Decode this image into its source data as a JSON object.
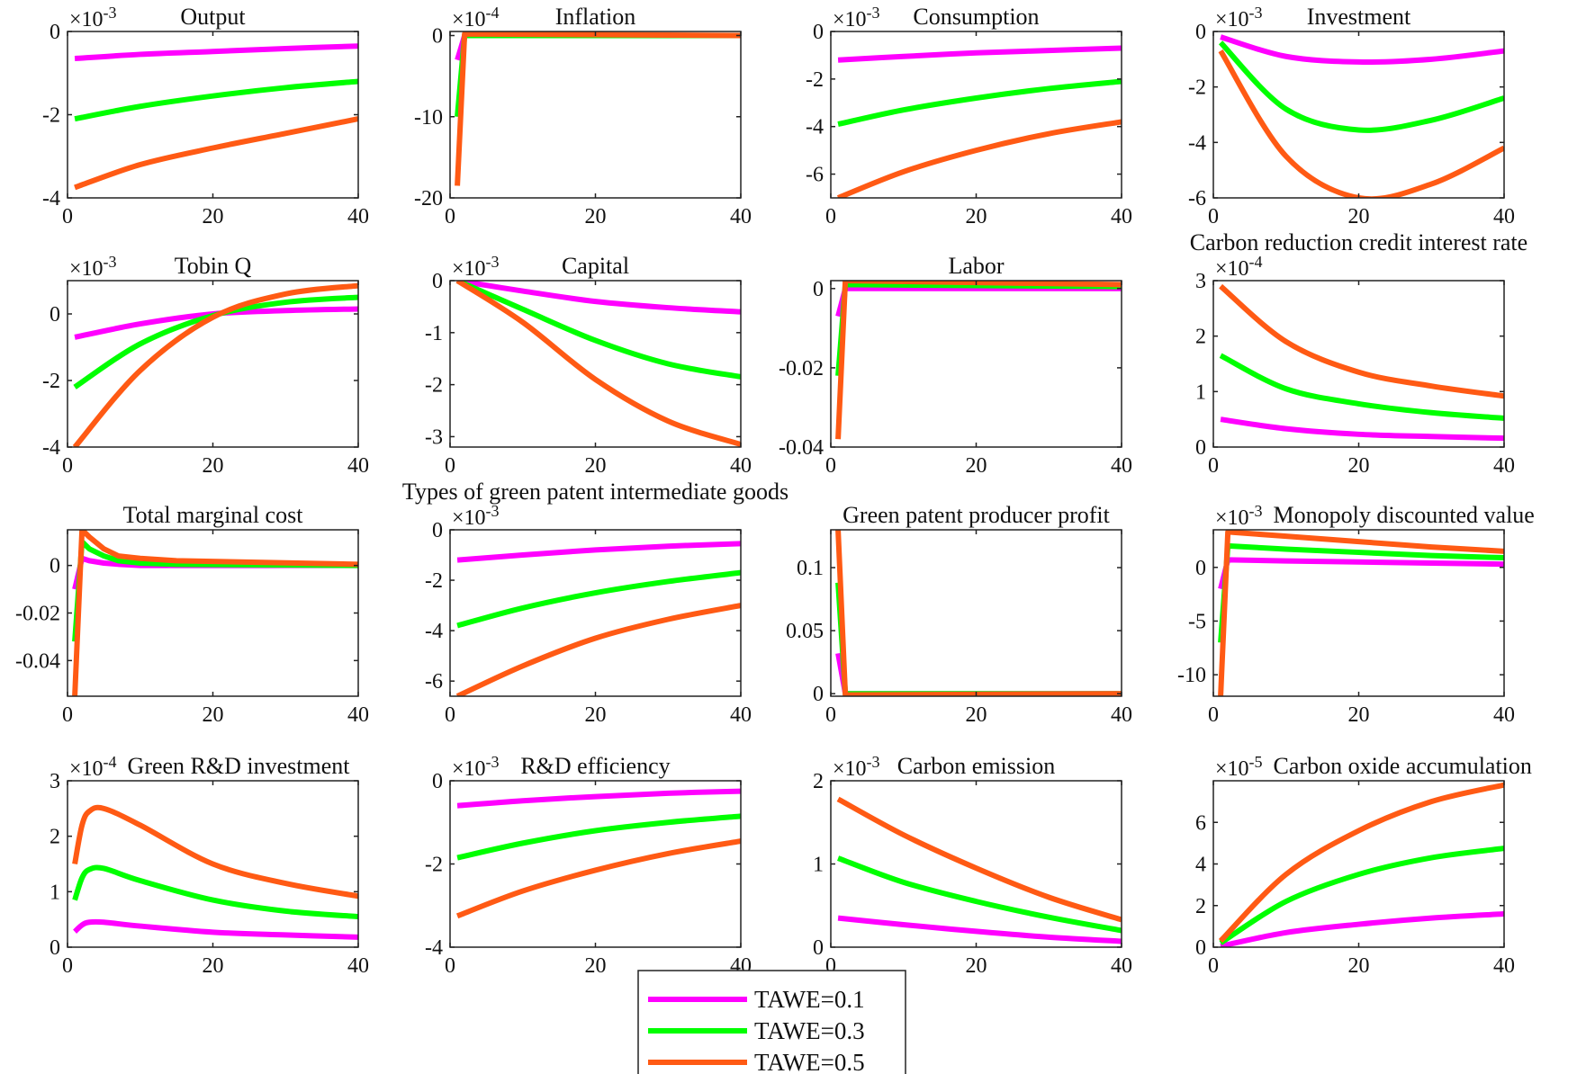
{
  "chart_data": {
    "type": "line",
    "grid": false,
    "layout": "4x4 subplots",
    "legend": {
      "placement": "bottom-center",
      "entries": [
        "TAWE=0.1",
        "TAWE=0.3",
        "TAWE=0.5"
      ]
    },
    "series_colors": [
      "#ff00ff",
      "#00ff00",
      "#ff5a14"
    ],
    "xlim": [
      0,
      40
    ],
    "xticks": [
      0,
      20,
      40
    ],
    "panels": [
      {
        "title": "Output",
        "exponent": "-3",
        "ylim": [
          -4,
          0
        ],
        "yticks": [
          0,
          -2,
          -4
        ],
        "smooth": true,
        "x": [
          1,
          10,
          20,
          30,
          40
        ],
        "series": [
          [
            -0.65,
            -0.55,
            -0.48,
            -0.41,
            -0.35
          ],
          [
            -2.1,
            -1.8,
            -1.55,
            -1.35,
            -1.2
          ],
          [
            -3.75,
            -3.2,
            -2.8,
            -2.45,
            -2.1
          ]
        ]
      },
      {
        "title": "Inflation",
        "exponent": "-4",
        "ylim": [
          -20,
          0.5
        ],
        "yticks": [
          0,
          -10,
          -20
        ],
        "smooth": false,
        "x": [
          1,
          2,
          40
        ],
        "series": [
          [
            -3,
            0,
            0
          ],
          [
            -10,
            0,
            0
          ],
          [
            -18.5,
            0.2,
            0
          ]
        ]
      },
      {
        "title": "Consumption",
        "exponent": "-3",
        "ylim": [
          -7,
          0
        ],
        "yticks": [
          0,
          -2,
          -4,
          -6
        ],
        "smooth": true,
        "x": [
          1,
          10,
          20,
          30,
          40
        ],
        "series": [
          [
            -1.2,
            -1.05,
            -0.9,
            -0.8,
            -0.7
          ],
          [
            -3.9,
            -3.3,
            -2.8,
            -2.4,
            -2.1
          ],
          [
            -7,
            -5.9,
            -5.0,
            -4.3,
            -3.8
          ]
        ]
      },
      {
        "title": "Investment",
        "exponent": "-3",
        "ylim": [
          -6,
          0
        ],
        "yticks": [
          0,
          -2,
          -4,
          -6
        ],
        "smooth": true,
        "x": [
          1,
          10,
          20,
          30,
          40
        ],
        "series": [
          [
            -0.2,
            -0.9,
            -1.1,
            -1.0,
            -0.7
          ],
          [
            -0.4,
            -2.8,
            -3.55,
            -3.2,
            -2.4
          ],
          [
            -0.7,
            -4.5,
            -6.0,
            -5.5,
            -4.2
          ]
        ]
      },
      {
        "title": "Tobin Q",
        "exponent": "-3",
        "ylim": [
          -4,
          1
        ],
        "yticks": [
          0,
          -2,
          -4
        ],
        "smooth": true,
        "x": [
          1,
          10,
          20,
          30,
          40
        ],
        "series": [
          [
            -0.7,
            -0.3,
            0,
            0.1,
            0.15
          ],
          [
            -2.2,
            -0.9,
            -0.05,
            0.35,
            0.5
          ],
          [
            -4.0,
            -1.7,
            -0.1,
            0.6,
            0.85
          ]
        ]
      },
      {
        "title": "Capital",
        "exponent": "-3",
        "ylim": [
          -3.2,
          0
        ],
        "yticks": [
          0,
          -1,
          -2,
          -3
        ],
        "smooth": true,
        "x": [
          1,
          10,
          20,
          30,
          40
        ],
        "series": [
          [
            0,
            -0.2,
            -0.4,
            -0.52,
            -0.6
          ],
          [
            0,
            -0.55,
            -1.15,
            -1.6,
            -1.85
          ],
          [
            0,
            -0.8,
            -1.9,
            -2.7,
            -3.15
          ]
        ]
      },
      {
        "title": "Labor",
        "exponent": "",
        "ylim": [
          -0.04,
          0.002
        ],
        "yticks": [
          0,
          -0.02,
          -0.04
        ],
        "smooth": false,
        "x": [
          1,
          2,
          40
        ],
        "series": [
          [
            -0.007,
            0,
            0
          ],
          [
            -0.022,
            0.001,
            0.0005
          ],
          [
            -0.038,
            0.002,
            0.001
          ]
        ]
      },
      {
        "title": "Carbon reduction credit interest rate",
        "exponent": "-4",
        "ylim": [
          0,
          3
        ],
        "yticks": [
          0,
          1,
          2,
          3
        ],
        "smooth": true,
        "x": [
          1,
          10,
          20,
          30,
          40
        ],
        "series": [
          [
            0.5,
            0.33,
            0.23,
            0.19,
            0.16
          ],
          [
            1.65,
            1.05,
            0.78,
            0.62,
            0.52
          ],
          [
            2.9,
            1.9,
            1.35,
            1.1,
            0.92
          ]
        ]
      },
      {
        "title": "Total marginal cost",
        "exponent": "",
        "ylim": [
          -0.055,
          0.015
        ],
        "yticks": [
          0,
          -0.02,
          -0.04
        ],
        "smooth": false,
        "x": [
          1,
          2,
          3,
          5,
          7,
          10,
          15,
          40
        ],
        "series": [
          [
            -0.01,
            0.003,
            0.002,
            0.001,
            0.0005,
            0,
            0,
            0
          ],
          [
            -0.032,
            0.01,
            0.007,
            0.004,
            0.002,
            0.001,
            0.0005,
            0
          ],
          [
            -0.055,
            0.015,
            0.012,
            0.007,
            0.004,
            0.003,
            0.002,
            0.0005
          ]
        ]
      },
      {
        "title": "Types of green patent intermediate goods",
        "exponent": "-3",
        "ylim": [
          -6.6,
          0
        ],
        "yticks": [
          0,
          -2,
          -4,
          -6
        ],
        "smooth": true,
        "x": [
          1,
          10,
          20,
          30,
          40
        ],
        "series": [
          [
            -1.2,
            -1.0,
            -0.8,
            -0.65,
            -0.55
          ],
          [
            -3.8,
            -3.1,
            -2.5,
            -2.05,
            -1.7
          ],
          [
            -6.6,
            -5.4,
            -4.3,
            -3.55,
            -3.0
          ]
        ]
      },
      {
        "title": "Green patent producer profit",
        "exponent": "",
        "ylim": [
          -0.002,
          0.13
        ],
        "yticks": [
          0,
          0.05,
          0.1
        ],
        "smooth": false,
        "x": [
          1,
          2,
          40
        ],
        "series": [
          [
            0.032,
            0,
            0
          ],
          [
            0.088,
            0,
            0
          ],
          [
            0.13,
            -0.001,
            0
          ]
        ]
      },
      {
        "title": "Monopoly discounted value",
        "exponent": "-3",
        "ylim": [
          -12,
          3.5
        ],
        "yticks": [
          0,
          -5,
          -10
        ],
        "smooth": false,
        "x": [
          1,
          2,
          10,
          20,
          30,
          40
        ],
        "series": [
          [
            -2,
            0.7,
            0.6,
            0.5,
            0.4,
            0.3
          ],
          [
            -7,
            2,
            1.7,
            1.4,
            1.1,
            0.9
          ],
          [
            -12,
            3.3,
            2.9,
            2.4,
            1.9,
            1.5
          ]
        ]
      },
      {
        "title": "Green R&D investment",
        "exponent": "-4",
        "ylim": [
          0,
          3
        ],
        "yticks": [
          0,
          1,
          2,
          3
        ],
        "smooth": true,
        "x": [
          1,
          2,
          3,
          5,
          10,
          20,
          30,
          40
        ],
        "series": [
          [
            0.28,
            0.4,
            0.45,
            0.45,
            0.38,
            0.27,
            0.22,
            0.18
          ],
          [
            0.85,
            1.25,
            1.4,
            1.42,
            1.2,
            0.85,
            0.65,
            0.55
          ],
          [
            1.5,
            2.2,
            2.45,
            2.5,
            2.2,
            1.5,
            1.15,
            0.92
          ]
        ]
      },
      {
        "title": "R&D efficiency",
        "exponent": "-3",
        "ylim": [
          -4,
          0
        ],
        "yticks": [
          0,
          -2,
          -4
        ],
        "smooth": true,
        "x": [
          1,
          10,
          20,
          30,
          40
        ],
        "series": [
          [
            -0.6,
            -0.48,
            -0.38,
            -0.3,
            -0.25
          ],
          [
            -1.85,
            -1.5,
            -1.2,
            -1.0,
            -0.85
          ],
          [
            -3.25,
            -2.65,
            -2.15,
            -1.75,
            -1.45
          ]
        ]
      },
      {
        "title": "Carbon emission",
        "exponent": "-3",
        "ylim": [
          0,
          2
        ],
        "yticks": [
          0,
          1,
          2
        ],
        "smooth": true,
        "x": [
          1,
          10,
          20,
          30,
          40
        ],
        "series": [
          [
            0.35,
            0.27,
            0.19,
            0.12,
            0.07
          ],
          [
            1.07,
            0.78,
            0.55,
            0.36,
            0.2
          ],
          [
            1.78,
            1.35,
            0.95,
            0.6,
            0.33
          ]
        ]
      },
      {
        "title": "Carbon oxide accumulation",
        "exponent": "-5",
        "ylim": [
          0,
          8
        ],
        "yticks": [
          0,
          2,
          4,
          6
        ],
        "smooth": true,
        "x": [
          1,
          10,
          20,
          30,
          40
        ],
        "series": [
          [
            0.05,
            0.7,
            1.1,
            1.4,
            1.6
          ],
          [
            0.2,
            2.2,
            3.5,
            4.3,
            4.75
          ],
          [
            0.3,
            3.5,
            5.6,
            7.0,
            7.8
          ]
        ]
      }
    ]
  }
}
